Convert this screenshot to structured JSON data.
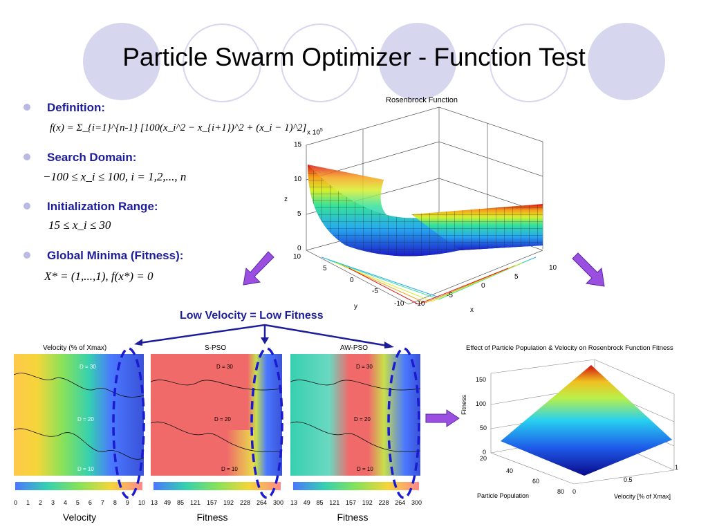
{
  "slide": {
    "title": "Particle Swarm Optimizer - Function Test",
    "accent_color": "#1d1d9c",
    "circle_color": "#d6d6ee"
  },
  "bullets": [
    {
      "heading": "Definition:",
      "formula": "f(x) = Σ_{i=1}^{n-1} [100(x_i^2 − x_{i+1})^2 + (x_i − 1)^2]"
    },
    {
      "heading": "Search Domain:",
      "formula": "−100 ≤ x_i ≤ 100, i = 1,2,..., n"
    },
    {
      "heading": "Initialization Range:",
      "formula": "15 ≤ x_i ≤ 30"
    },
    {
      "heading": "Global Minima (Fitness):",
      "formula": "X* = (1,...,1), f(x*) = 0"
    }
  ],
  "rosenbrock_plot": {
    "title": "Rosenbrock Function",
    "z_label": "z",
    "x_label": "x",
    "y_label": "y",
    "z_scale": "x 10",
    "z_scale_exp": "5",
    "z_ticks": [
      "15",
      "10",
      "5",
      "0"
    ],
    "y_ticks": [
      "10",
      "5",
      "0",
      "-5",
      "-10"
    ],
    "x_ticks": [
      "-10",
      "-5",
      "0",
      "5",
      "10"
    ]
  },
  "center_note": "Low Velocity = Low Fitness",
  "maps": [
    {
      "title": "Velocity (% of Xmax)",
      "caption": "Velocity",
      "ticks": [
        "0",
        "1",
        "2",
        "3",
        "4",
        "5",
        "6",
        "7",
        "8",
        "9",
        "10"
      ],
      "labels": [
        "D = 30",
        "D = 20",
        "D = 10"
      ]
    },
    {
      "title": "S-PSO",
      "caption": "Fitness",
      "ticks": [
        "13",
        "49",
        "85",
        "121",
        "157",
        "192",
        "228",
        "264",
        "300"
      ],
      "labels": [
        "D = 30",
        "D = 20",
        "D = 10"
      ]
    },
    {
      "title": "AW-PSO",
      "caption": "Fitness",
      "ticks": [
        "13",
        "49",
        "85",
        "121",
        "157",
        "192",
        "228",
        "264",
        "300"
      ],
      "labels": [
        "D = 30",
        "D = 20",
        "D = 10"
      ]
    }
  ],
  "effect_plot": {
    "title": "Effect of Particle Population & Velocity on Rosenbrock Function Fitness",
    "z_label": "Fitness",
    "z_ticks": [
      "150",
      "100",
      "50",
      "0"
    ],
    "x_label": "Particle Population",
    "x_ticks": [
      "20",
      "40",
      "60",
      "80"
    ],
    "y_label": "Velocity [% of Xmax]",
    "y_ticks": [
      "0",
      "0.5",
      "1"
    ]
  }
}
